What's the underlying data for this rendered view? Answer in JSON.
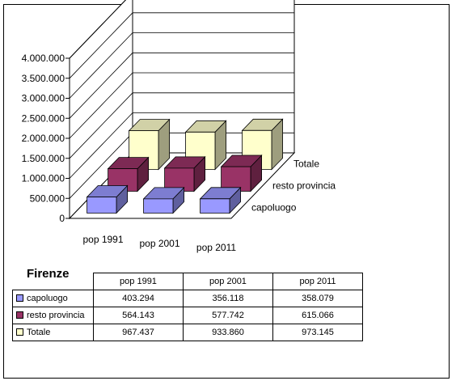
{
  "chart_data": {
    "type": "bar",
    "variant": "3d-column",
    "title": "",
    "categories": [
      "pop 1991",
      "pop 2001",
      "pop 2011"
    ],
    "series": [
      {
        "name": "capoluogo",
        "values": [
          403294,
          356118,
          358079
        ],
        "color": "#9999ff"
      },
      {
        "name": "resto provincia",
        "values": [
          564143,
          577742,
          615066
        ],
        "color": "#993366"
      },
      {
        "name": "Totale",
        "values": [
          967437,
          933860,
          973145
        ],
        "color": "#ffffcc"
      }
    ],
    "ylim": [
      0,
      4000000
    ],
    "yticks": [
      0,
      500000,
      1000000,
      1500000,
      2000000,
      2500000,
      3000000,
      3500000,
      4000000
    ],
    "ytick_labels": [
      "0",
      "500.000",
      "1.000.000",
      "1.500.000",
      "2.000.000",
      "2.500.000",
      "3.000.000",
      "3.500.000",
      "4.000.000"
    ],
    "grid": true,
    "legend": "none"
  },
  "table": {
    "title": "Firenze",
    "headers": [
      "pop 1991",
      "pop 2001",
      "pop 2011"
    ],
    "rows": [
      {
        "label": "capoluogo",
        "values": [
          "403.294",
          "356.118",
          "358.079"
        ]
      },
      {
        "label": "resto provincia",
        "values": [
          "564.143",
          "577.742",
          "615.066"
        ]
      },
      {
        "label": "Totale",
        "values": [
          "967.437",
          "933.860",
          "973.145"
        ]
      }
    ]
  }
}
